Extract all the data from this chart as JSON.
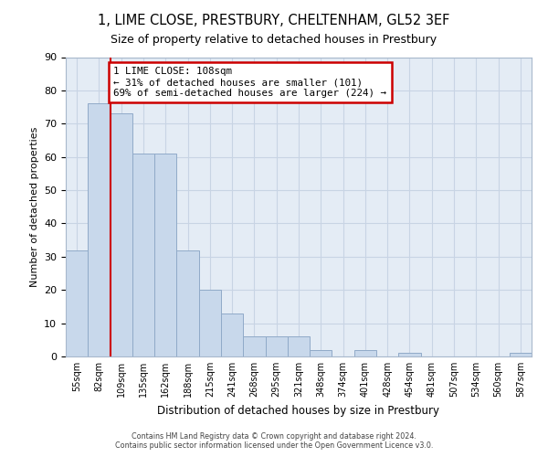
{
  "title": "1, LIME CLOSE, PRESTBURY, CHELTENHAM, GL52 3EF",
  "subtitle": "Size of property relative to detached houses in Prestbury",
  "xlabel": "Distribution of detached houses by size in Prestbury",
  "ylabel": "Number of detached properties",
  "bar_labels": [
    "55sqm",
    "82sqm",
    "109sqm",
    "135sqm",
    "162sqm",
    "188sqm",
    "215sqm",
    "241sqm",
    "268sqm",
    "295sqm",
    "321sqm",
    "348sqm",
    "374sqm",
    "401sqm",
    "428sqm",
    "454sqm",
    "481sqm",
    "507sqm",
    "534sqm",
    "560sqm",
    "587sqm"
  ],
  "bar_values": [
    32,
    76,
    73,
    61,
    61,
    32,
    20,
    13,
    6,
    6,
    6,
    2,
    0,
    2,
    0,
    1,
    0,
    0,
    0,
    0,
    1
  ],
  "bar_color": "#c8d8eb",
  "bar_edge_color": "#90aac8",
  "property_line_label": "1 LIME CLOSE: 108sqm",
  "annotation_line1": "← 31% of detached houses are smaller (101)",
  "annotation_line2": "69% of semi-detached houses are larger (224) →",
  "annotation_box_color": "#ffffff",
  "annotation_box_edge_color": "#cc0000",
  "line_color": "#cc0000",
  "ylim": [
    0,
    90
  ],
  "yticks": [
    0,
    10,
    20,
    30,
    40,
    50,
    60,
    70,
    80,
    90
  ],
  "grid_color": "#c8d4e4",
  "background_color": "#e4ecf5",
  "footer_line1": "Contains HM Land Registry data © Crown copyright and database right 2024.",
  "footer_line2": "Contains public sector information licensed under the Open Government Licence v3.0."
}
